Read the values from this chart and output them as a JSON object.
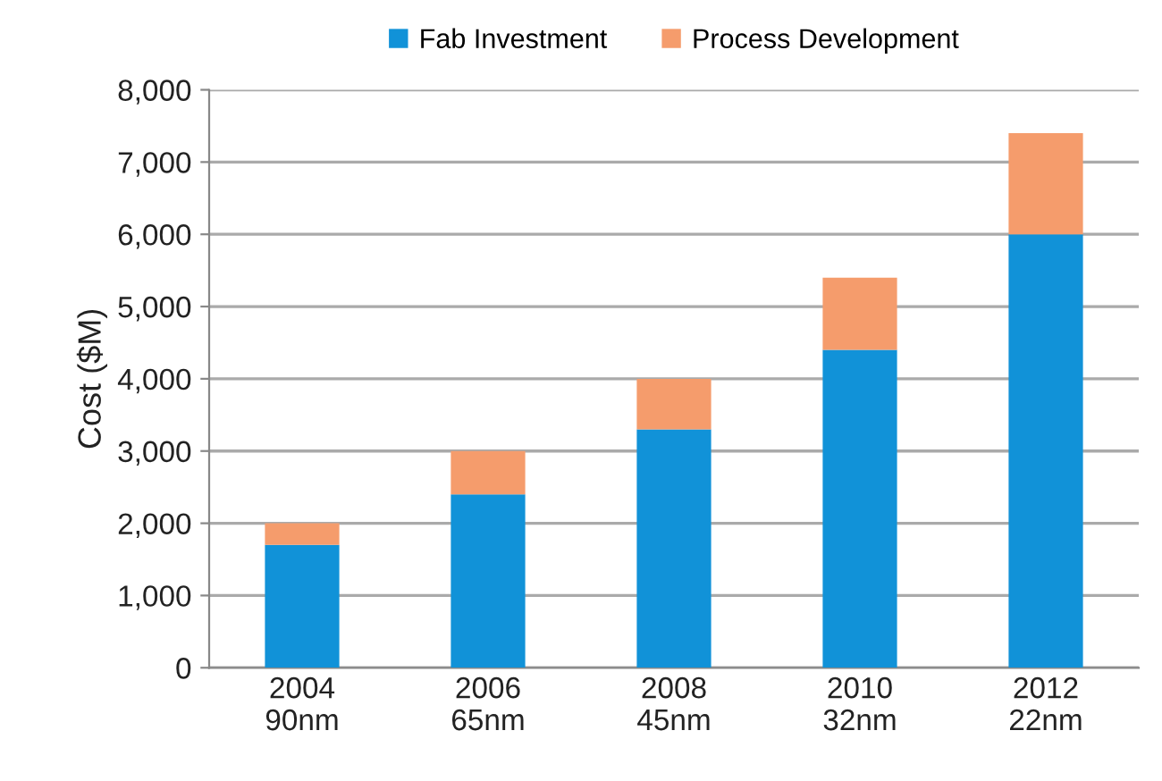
{
  "chart_data": {
    "type": "bar",
    "stacked": true,
    "ylabel": "Cost ($M)",
    "categories": [
      "2004\n90nm",
      "2006\n65nm",
      "2008\n45nm",
      "2010\n32nm",
      "2012\n22nm"
    ],
    "series": [
      {
        "name": "Fab Investment",
        "color": "#1192d8",
        "values": [
          1700,
          2400,
          3300,
          4400,
          6000
        ]
      },
      {
        "name": "Process Development",
        "color": "#f59c6c",
        "values": [
          300,
          600,
          700,
          1000,
          1400
        ]
      }
    ],
    "ylim": [
      0,
      8000
    ],
    "yticks": [
      {
        "value": 0,
        "label": "0"
      },
      {
        "value": 1000,
        "label": "1,000"
      },
      {
        "value": 2000,
        "label": "2,000"
      },
      {
        "value": 3000,
        "label": "3,000"
      },
      {
        "value": 4000,
        "label": "4,000"
      },
      {
        "value": 5000,
        "label": "5,000"
      },
      {
        "value": 6000,
        "label": "6,000"
      },
      {
        "value": 7000,
        "label": "7,000"
      },
      {
        "value": 8000,
        "label": "8,000"
      }
    ],
    "grid": "y",
    "legend": "top"
  }
}
